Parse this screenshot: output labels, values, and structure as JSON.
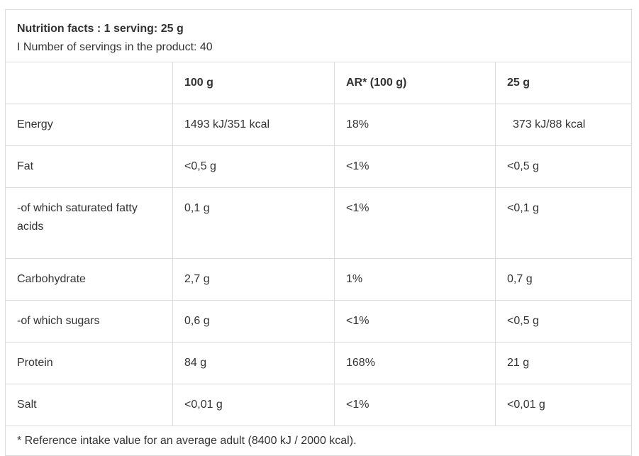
{
  "header": {
    "title": "Nutrition facts : 1 serving: 25 g",
    "servings": "I Number of servings in the product: 40"
  },
  "columns": [
    "",
    "100 g",
    "AR* (100 g)",
    "25 g"
  ],
  "rows": [
    {
      "name": "Energy",
      "per100": "1493 kJ/351 kcal",
      "ar": "18%",
      "per25": "373 kJ/88 kcal"
    },
    {
      "name": "Fat",
      "per100": "<0,5 g",
      "ar": "<1%",
      "per25": "<0,5 g"
    },
    {
      "name": "-of which saturated fatty acids",
      "per100": "0,1 g",
      "ar": "<1%",
      "per25": "<0,1 g"
    },
    {
      "name": "Carbohydrate",
      "per100": "2,7 g",
      "ar": "1%",
      "per25": "0,7 g"
    },
    {
      "name": "-of which sugars",
      "per100": "0,6 g",
      "ar": "<1%",
      "per25": "<0,5 g"
    },
    {
      "name": "Protein",
      "per100": "84 g",
      "ar": "168%",
      "per25": "21 g"
    },
    {
      "name": "Salt",
      "per100": "<0,01 g",
      "ar": "<1%",
      "per25": "<0,01 g"
    }
  ],
  "footer": {
    "note": "* Reference intake value for an average adult (8400 kJ / 2000 kcal)."
  }
}
